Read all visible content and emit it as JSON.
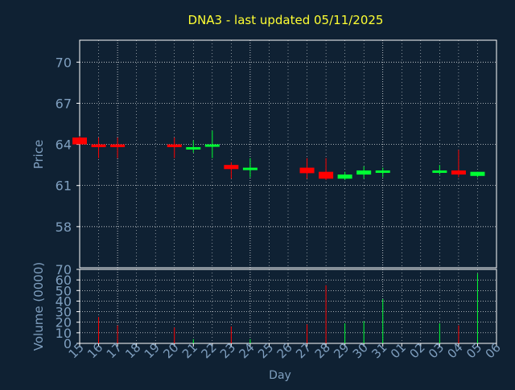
{
  "colors": {
    "background": "#0f2133",
    "grid": "#ffffff",
    "axis_text": "#7f9fbf",
    "title": "#ffff33",
    "up": "#00ff33",
    "down": "#ff0000"
  },
  "chart_data": {
    "type": "candlestick",
    "title": "DNA3 - last updated 05/11/2025",
    "xlabel": "Day",
    "price_panel": {
      "ylabel": "Price",
      "ylim": [
        55.0,
        71.6
      ],
      "yticks": [
        58,
        61,
        64,
        67,
        70
      ]
    },
    "volume_panel": {
      "ylabel": "Volume (0000)",
      "ylim": [
        0,
        70
      ],
      "yticks": [
        0,
        10,
        20,
        30,
        40,
        50,
        60,
        70
      ]
    },
    "x_tick_labels": [
      "15",
      "16",
      "17",
      "18",
      "19",
      "20",
      "21",
      "22",
      "23",
      "24",
      "25",
      "26",
      "27",
      "28",
      "29",
      "30",
      "31",
      "01",
      "02",
      "03",
      "04",
      "05",
      "06"
    ],
    "candles": [
      {
        "day": "15",
        "open": 64.5,
        "high": 64.6,
        "low": 64.0,
        "close": 64.0,
        "volume": 0
      },
      {
        "day": "16",
        "open": 64.0,
        "high": 64.5,
        "low": 63.0,
        "close": 63.8,
        "volume": 25
      },
      {
        "day": "17",
        "open": 64.0,
        "high": 64.5,
        "low": 63.0,
        "close": 63.8,
        "volume": 17
      },
      {
        "day": "20",
        "open": 64.0,
        "high": 64.5,
        "low": 63.0,
        "close": 63.8,
        "volume": 15
      },
      {
        "day": "21",
        "open": 63.7,
        "high": 64.3,
        "low": 63.4,
        "close": 63.8,
        "volume": 4
      },
      {
        "day": "22",
        "open": 63.9,
        "high": 65.0,
        "low": 63.0,
        "close": 64.0,
        "volume": 0
      },
      {
        "day": "23",
        "open": 62.5,
        "high": 62.7,
        "low": 61.5,
        "close": 62.2,
        "volume": 16
      },
      {
        "day": "24",
        "open": 62.2,
        "high": 63.0,
        "low": 61.6,
        "close": 62.3,
        "volume": 4
      },
      {
        "day": "27",
        "open": 62.3,
        "high": 63.0,
        "low": 61.5,
        "close": 61.9,
        "volume": 18
      },
      {
        "day": "28",
        "open": 62.0,
        "high": 63.0,
        "low": 61.4,
        "close": 61.5,
        "volume": 55
      },
      {
        "day": "29",
        "open": 61.5,
        "high": 62.0,
        "low": 61.4,
        "close": 61.8,
        "volume": 19
      },
      {
        "day": "30",
        "open": 61.8,
        "high": 62.4,
        "low": 61.5,
        "close": 62.1,
        "volume": 21
      },
      {
        "day": "31",
        "open": 62.0,
        "high": 62.3,
        "low": 61.6,
        "close": 62.1,
        "volume": 42
      },
      {
        "day": "03",
        "open": 62.0,
        "high": 62.5,
        "low": 61.8,
        "close": 62.1,
        "volume": 19
      },
      {
        "day": "04",
        "open": 62.1,
        "high": 63.6,
        "low": 61.6,
        "close": 61.8,
        "volume": 17
      },
      {
        "day": "05",
        "open": 61.7,
        "high": 62.0,
        "low": 61.6,
        "close": 62.0,
        "volume": 66
      }
    ]
  }
}
